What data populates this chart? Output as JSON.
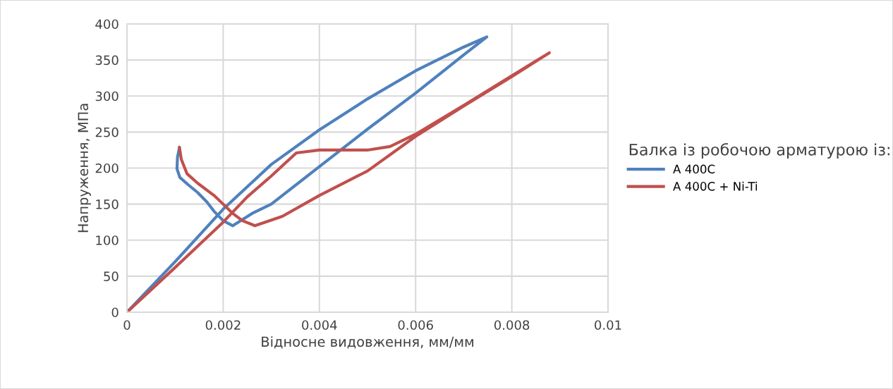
{
  "chart_data": {
    "type": "line",
    "xlabel": "Відносне видовження, мм/мм",
    "ylabel": "Напруження, МПа",
    "legend_title": "Балка із робочою арматурою із:",
    "xlim": [
      0,
      0.01
    ],
    "xticks": [
      0,
      0.002,
      0.004,
      0.006,
      0.008,
      0.01
    ],
    "ylim": [
      0,
      400
    ],
    "yticks": [
      0,
      50,
      100,
      150,
      200,
      250,
      300,
      350,
      400
    ],
    "grid": true,
    "legend": "right",
    "marker": "none",
    "line_style": "solid",
    "series": [
      {
        "name": "A 400C",
        "color": "#4f81bd",
        "x": [
          0,
          0.001,
          0.002,
          0.003,
          0.004,
          0.005,
          0.006,
          0.007,
          0.00748,
          0.007,
          0.006,
          0.005,
          0.004,
          0.003,
          0.0026,
          0.0022,
          0.002,
          0.00181,
          0.00166,
          0.00147,
          0.00127,
          0.0011,
          0.00104,
          0.00105,
          0.00109
        ],
        "values": [
          0,
          70,
          143,
          205,
          253,
          296,
          335,
          368,
          382,
          357,
          304,
          254,
          202,
          150,
          137,
          120,
          127,
          140,
          153,
          166,
          177,
          187,
          199,
          215,
          228
        ]
      },
      {
        "name": "A 400C + Ni-Ti",
        "color": "#c0504d",
        "x": [
          0,
          0.001,
          0.002,
          0.0025,
          0.003,
          0.00352,
          0.004,
          0.005,
          0.00547,
          0.006,
          0.007,
          0.008,
          0.00878,
          0.008,
          0.007,
          0.006,
          0.005,
          0.004,
          0.00323,
          0.00266,
          0.0024,
          0.0022,
          0.002,
          0.00181,
          0.00147,
          0.00125,
          0.00113,
          0.00109
        ],
        "values": [
          0,
          62,
          125,
          160,
          189,
          221,
          225,
          225,
          230,
          247,
          287,
          328,
          360,
          327,
          286,
          244,
          196,
          162,
          133,
          120,
          127,
          137,
          150,
          162,
          179,
          192,
          212,
          229
        ]
      }
    ]
  }
}
